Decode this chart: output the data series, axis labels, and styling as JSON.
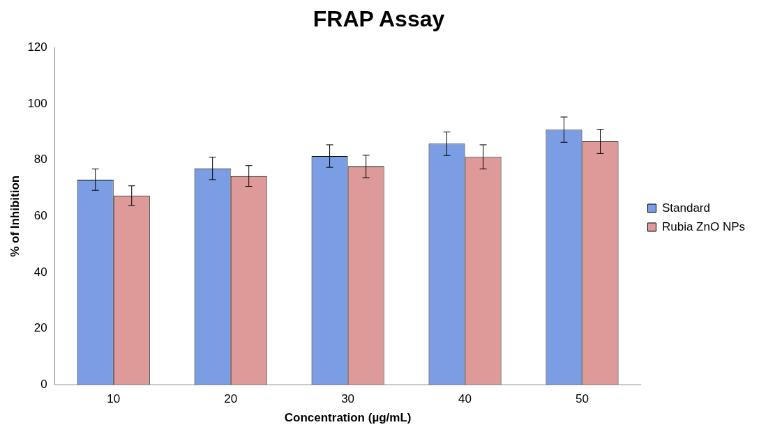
{
  "chart_data": {
    "type": "bar",
    "title": "FRAP Assay",
    "xlabel": "Concentration (µg/mL)",
    "ylabel": "% of Inhibition",
    "categories": [
      "10",
      "20",
      "30",
      "40",
      "50"
    ],
    "series": [
      {
        "name": "Standard",
        "color": "#7b9de3",
        "values": [
          73,
          77,
          81.4,
          85.8,
          90.8
        ],
        "errors": [
          3.8,
          4,
          4,
          4.2,
          4.5
        ]
      },
      {
        "name": "Rubia ZnO NPs",
        "color": "#dd9a98",
        "values": [
          67.3,
          74.3,
          77.7,
          81.1,
          86.6
        ],
        "errors": [
          3.5,
          3.7,
          4,
          4.3,
          4.3
        ]
      }
    ],
    "ylim": [
      0,
      120
    ],
    "yticks": [
      0,
      20,
      40,
      60,
      80,
      100,
      120
    ],
    "grid": false,
    "legend": "right"
  }
}
